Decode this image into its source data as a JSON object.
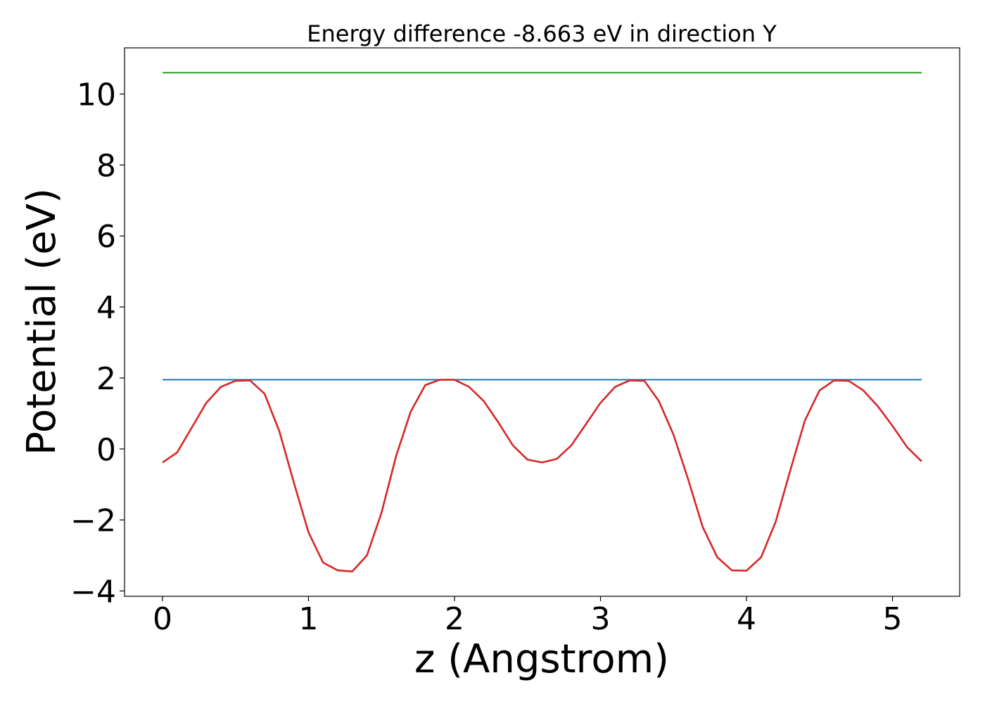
{
  "chart_data": {
    "type": "line",
    "title": "Energy difference -8.663 eV in direction Y",
    "xlabel": "z (Angstrom)",
    "ylabel": "Potential (eV)",
    "xlim": [
      -0.26,
      5.46
    ],
    "ylim": [
      -4.15,
      11.3
    ],
    "xticks": [
      0,
      1,
      2,
      3,
      4,
      5
    ],
    "xtick_labels": [
      "0",
      "1",
      "2",
      "3",
      "4",
      "5"
    ],
    "yticks": [
      -4,
      -2,
      0,
      2,
      4,
      6,
      8,
      10
    ],
    "ytick_labels": [
      "−4",
      "−2",
      "0",
      "2",
      "4",
      "6",
      "8",
      "10"
    ],
    "grid": false,
    "series": [
      {
        "color": "#2ca02c",
        "x": [
          0.0,
          5.2
        ],
        "y": [
          10.6,
          10.6
        ]
      },
      {
        "color": "#1f77b4",
        "x": [
          0.0,
          5.2
        ],
        "y": [
          1.95,
          1.95
        ]
      },
      {
        "color": "#d62728",
        "x": [
          0.0,
          0.1,
          0.2,
          0.3,
          0.4,
          0.5,
          0.6,
          0.7,
          0.8,
          0.9,
          1.0,
          1.1,
          1.2,
          1.3,
          1.4,
          1.5,
          1.6,
          1.7,
          1.8,
          1.9,
          2.0,
          2.1,
          2.2,
          2.3,
          2.4,
          2.5,
          2.6,
          2.7,
          2.8,
          2.9,
          3.0,
          3.1,
          3.2,
          3.3,
          3.4,
          3.5,
          3.6,
          3.7,
          3.8,
          3.9,
          4.0,
          4.1,
          4.2,
          4.3,
          4.4,
          4.5,
          4.6,
          4.7,
          4.8,
          4.9,
          5.0,
          5.1,
          5.2
        ],
        "y": [
          -0.38,
          -0.1,
          0.6,
          1.3,
          1.75,
          1.92,
          1.93,
          1.55,
          0.5,
          -0.95,
          -2.35,
          -3.2,
          -3.42,
          -3.45,
          -3.0,
          -1.8,
          -0.2,
          1.05,
          1.8,
          1.95,
          1.95,
          1.75,
          1.35,
          0.75,
          0.1,
          -0.3,
          -0.38,
          -0.28,
          0.1,
          0.7,
          1.3,
          1.75,
          1.93,
          1.92,
          1.35,
          0.4,
          -0.85,
          -2.2,
          -3.05,
          -3.42,
          -3.43,
          -3.05,
          -2.05,
          -0.6,
          0.8,
          1.65,
          1.93,
          1.92,
          1.65,
          1.2,
          0.65,
          0.05,
          -0.35
        ]
      }
    ]
  }
}
